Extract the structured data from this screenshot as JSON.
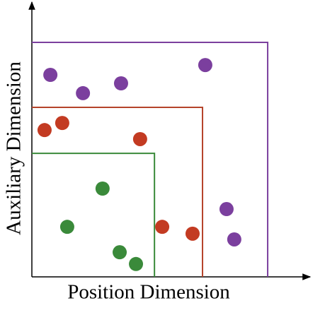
{
  "chart_data": {
    "type": "scatter",
    "xlabel": "Position Dimension",
    "ylabel": "Auxiliary Dimension",
    "xlim": [
      0,
      100
    ],
    "ylim": [
      0,
      100
    ],
    "regions": [
      {
        "color": "#7b3f9e",
        "x": 85.4,
        "y": 85.8
      },
      {
        "color": "#b5432a",
        "x": 61.8,
        "y": 62.0
      },
      {
        "color": "#3a8a3a",
        "x": 44.4,
        "y": 45.2
      }
    ],
    "series": [
      {
        "color": "#7b3f9e",
        "x": [
          6.7,
          18.5,
          32.3,
          62.8,
          70.5,
          73.3
        ],
        "values": [
          73.9,
          67.2,
          70.8,
          77.5,
          24.8,
          13.7
        ]
      },
      {
        "color": "#c33b22",
        "x": [
          4.6,
          11.0,
          39.2,
          47.2,
          58.2
        ],
        "values": [
          53.7,
          56.3,
          50.4,
          18.3,
          15.8
        ]
      },
      {
        "color": "#3a8a3a",
        "x": [
          25.6,
          12.8,
          31.8,
          37.7
        ],
        "values": [
          32.3,
          18.3,
          9.0,
          4.7
        ]
      }
    ]
  }
}
